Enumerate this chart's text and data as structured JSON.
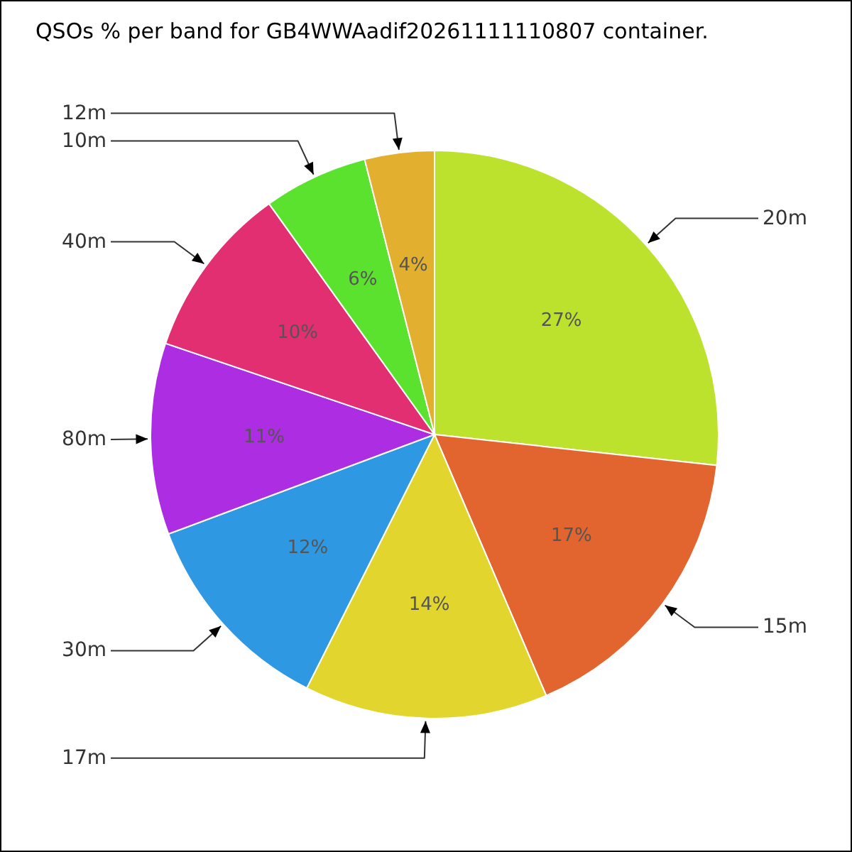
{
  "chart_data": {
    "type": "pie",
    "title": "QSOs % per band for GB4WWAadif20261111110807 container.",
    "categories": [
      "20m",
      "15m",
      "17m",
      "30m",
      "80m",
      "40m",
      "10m",
      "12m"
    ],
    "values": [
      27,
      17,
      14,
      12,
      11,
      10,
      6,
      4
    ],
    "value_labels": [
      "27%",
      "17%",
      "14%",
      "12%",
      "11%",
      "10%",
      "6%",
      "4%"
    ],
    "colors": [
      "#bce22e",
      "#e2642f",
      "#e2d52e",
      "#2f98e2",
      "#ad2ee2",
      "#e22f72",
      "#5be22e",
      "#e2b02e"
    ]
  }
}
